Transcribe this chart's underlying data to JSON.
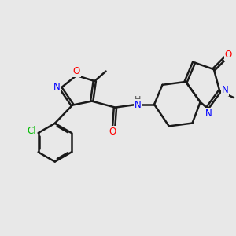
{
  "background_color": "#e8e8e8",
  "bond_color": "#1a1a1a",
  "bond_width": 1.8,
  "atom_colors": {
    "O": "#ff0000",
    "N": "#0000ff",
    "Cl": "#00bb00",
    "C": "#1a1a1a",
    "H": "#555555"
  },
  "font_size": 8.5,
  "figsize": [
    3.0,
    3.0
  ],
  "dpi": 100
}
